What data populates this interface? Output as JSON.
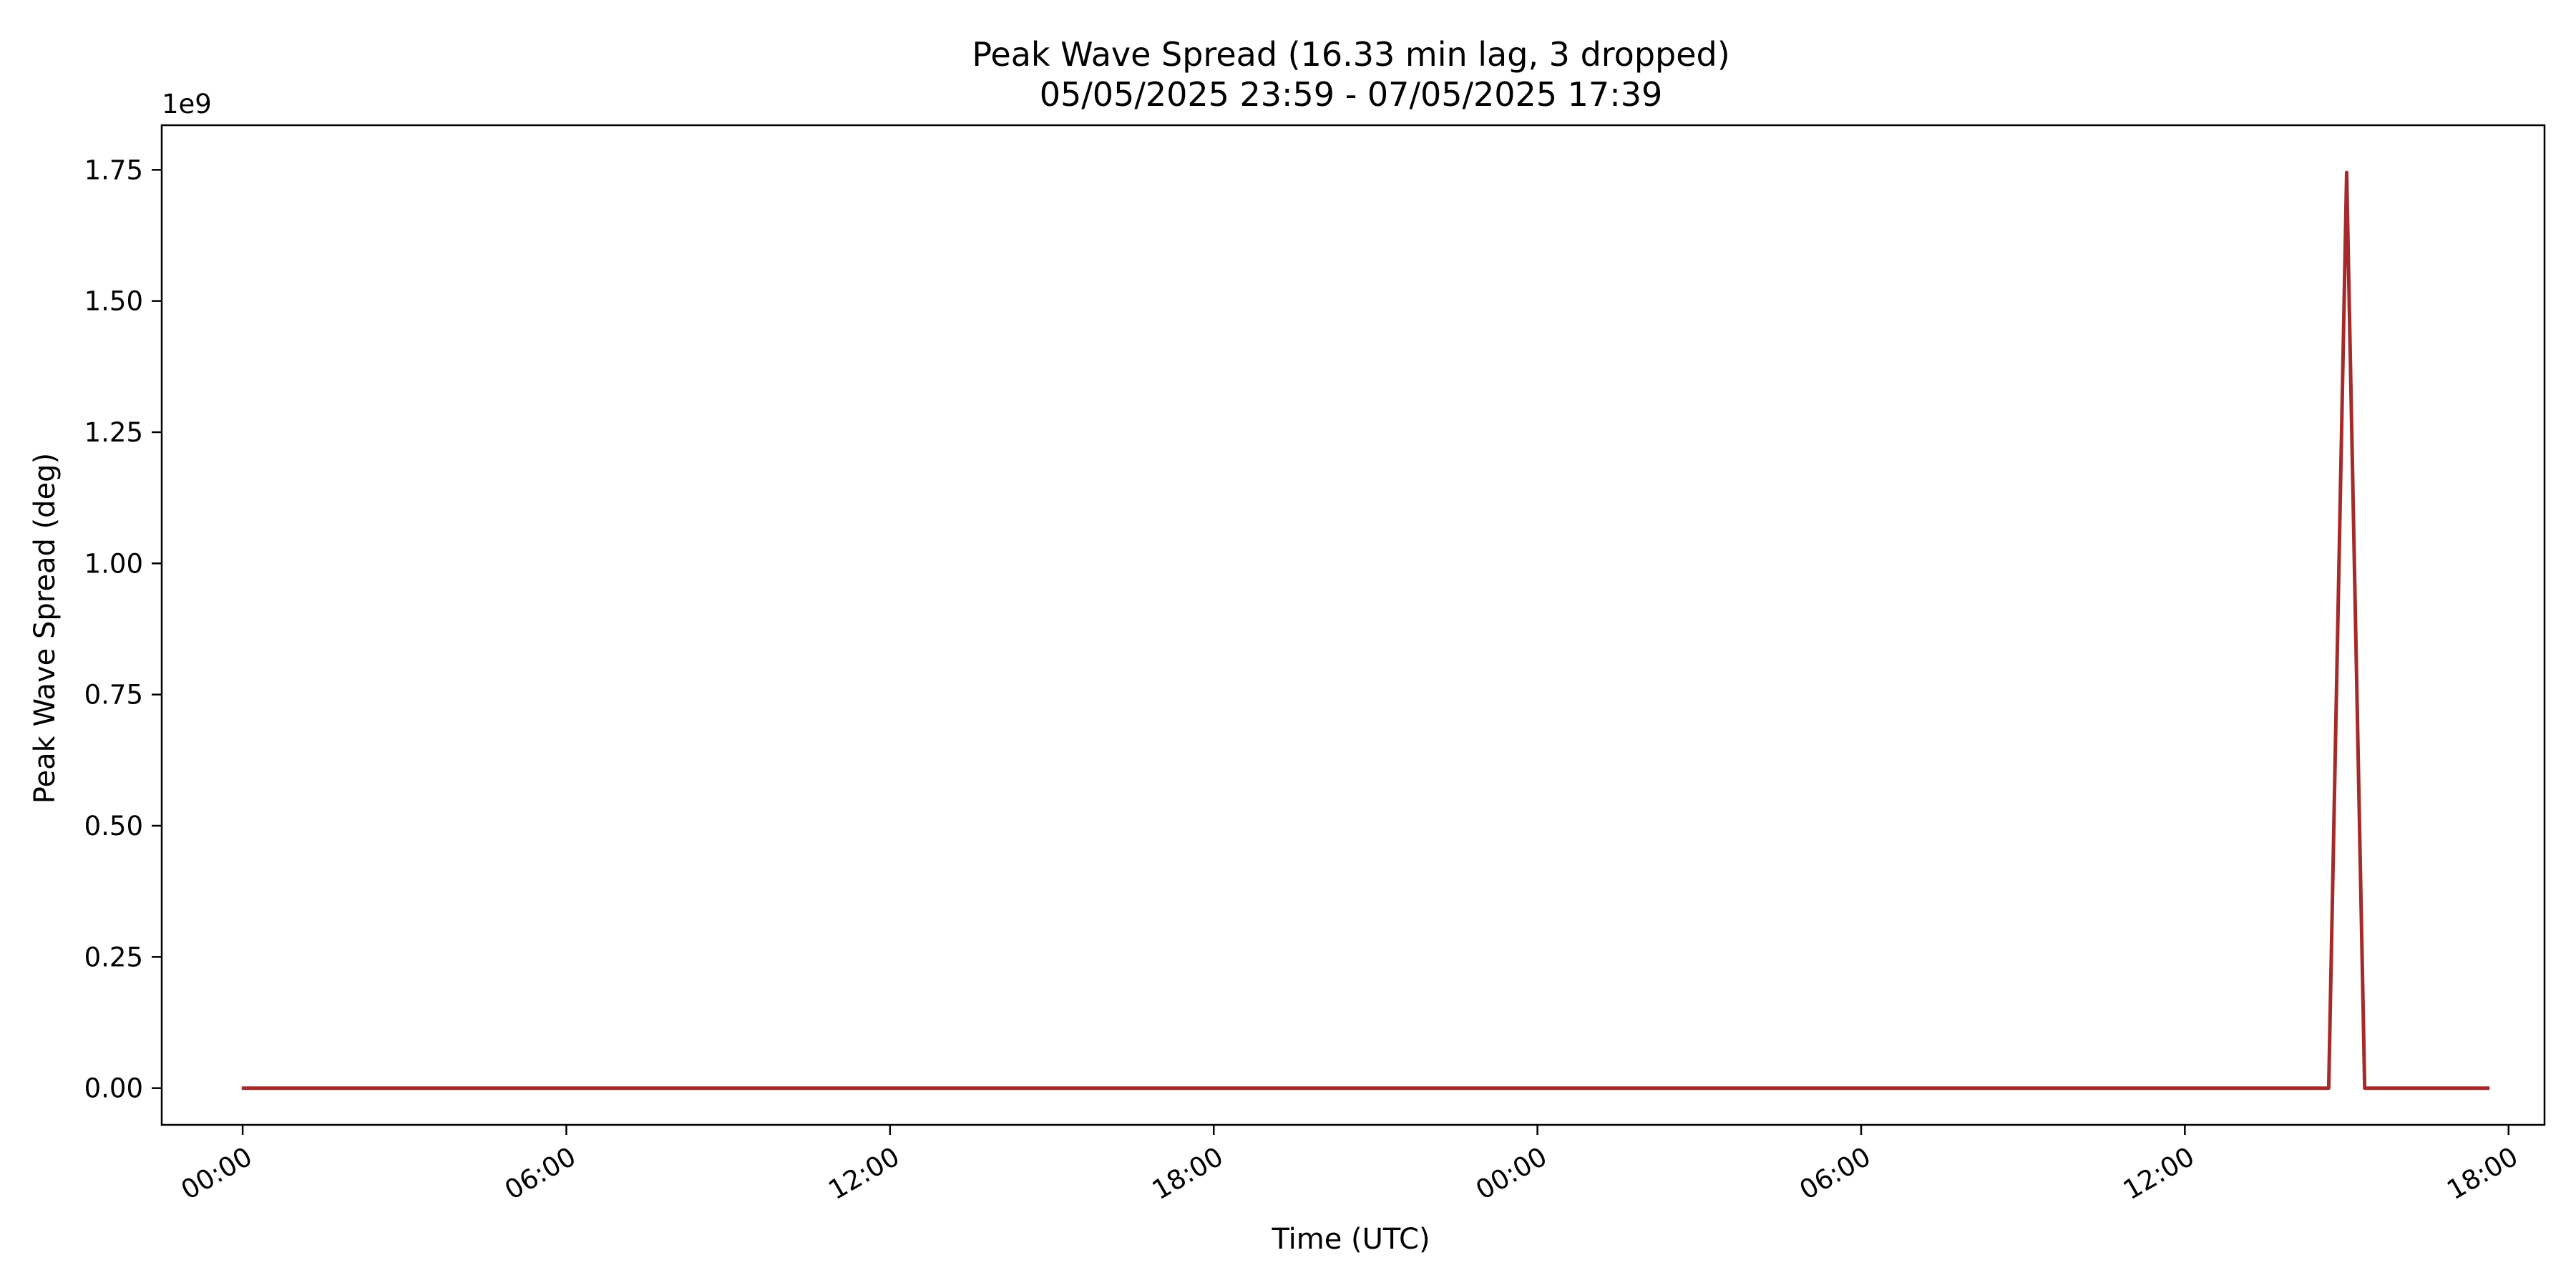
{
  "chart_data": {
    "type": "line",
    "title": "Peak Wave Spread (16.33 min lag, 3 dropped)",
    "subtitle": "05/05/2025 23:59 - 07/05/2025 17:39",
    "xlabel": "Time (UTC)",
    "ylabel": "Peak Wave Spread (deg)",
    "y_offset_label": "1e9",
    "x_range": [
      "2025-05-05T22:30",
      "2025-05-07T18:40"
    ],
    "ylim": [
      -70000000,
      1835000000
    ],
    "x_ticks": [
      {
        "t": "2025-05-06T00:00",
        "label": "00:00"
      },
      {
        "t": "2025-05-06T06:00",
        "label": "06:00"
      },
      {
        "t": "2025-05-06T12:00",
        "label": "12:00"
      },
      {
        "t": "2025-05-06T18:00",
        "label": "18:00"
      },
      {
        "t": "2025-05-07T00:00",
        "label": "00:00"
      },
      {
        "t": "2025-05-07T06:00",
        "label": "06:00"
      },
      {
        "t": "2025-05-07T12:00",
        "label": "12:00"
      },
      {
        "t": "2025-05-07T18:00",
        "label": "18:00"
      }
    ],
    "y_ticks": [
      {
        "v": 0,
        "label": "0.00"
      },
      {
        "v": 250000000,
        "label": "0.25"
      },
      {
        "v": 500000000,
        "label": "0.50"
      },
      {
        "v": 750000000,
        "label": "0.75"
      },
      {
        "v": 1000000000,
        "label": "1.00"
      },
      {
        "v": 1250000000,
        "label": "1.25"
      },
      {
        "v": 1500000000,
        "label": "1.50"
      },
      {
        "v": 1750000000,
        "label": "1.75"
      }
    ],
    "grid": false,
    "series": [
      {
        "color": "#a52a2a",
        "points": [
          {
            "t": "2025-05-05T23:59",
            "y": 0
          },
          {
            "t": "2025-05-07T14:40",
            "y": 0
          },
          {
            "t": "2025-05-07T15:00",
            "y": 1745000000
          },
          {
            "t": "2025-05-07T15:20",
            "y": 0
          },
          {
            "t": "2025-05-07T17:39",
            "y": 0
          }
        ]
      }
    ]
  }
}
